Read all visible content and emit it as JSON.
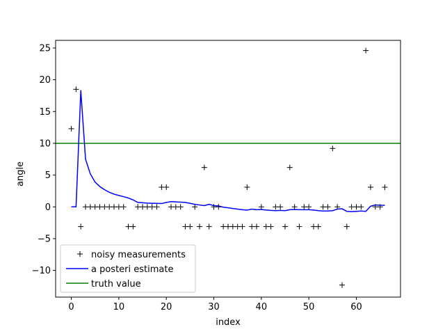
{
  "chart_data": {
    "type": "line",
    "xlabel": "index",
    "ylabel": "angle",
    "xlim": [
      -3.3,
      69.3
    ],
    "ylim": [
      -14.2,
      26.2
    ],
    "xticks": [
      0,
      10,
      20,
      30,
      40,
      50,
      60
    ],
    "yticks": [
      -10,
      -5,
      0,
      5,
      10,
      15,
      20,
      25
    ],
    "xtick_labels": [
      "0",
      "10",
      "20",
      "30",
      "40",
      "50",
      "60"
    ],
    "ytick_labels": [
      "−10",
      "−5",
      "0",
      "5",
      "10",
      "15",
      "20",
      "25"
    ],
    "grid": false,
    "legend_position": "lower-left",
    "series": [
      {
        "name": "noisy measurements",
        "kind": "scatter",
        "marker": "+",
        "color": "#000000",
        "x": [
          0,
          1,
          2,
          3,
          4,
          5,
          6,
          7,
          8,
          9,
          10,
          11,
          12,
          13,
          14,
          15,
          16,
          17,
          18,
          19,
          20,
          21,
          22,
          23,
          24,
          25,
          26,
          27,
          28,
          29,
          30,
          31,
          32,
          33,
          34,
          35,
          36,
          37,
          38,
          39,
          40,
          41,
          42,
          43,
          44,
          45,
          46,
          47,
          48,
          49,
          50,
          51,
          52,
          53,
          54,
          55,
          56,
          57,
          58,
          59,
          60,
          61,
          62,
          63,
          64,
          65,
          66
        ],
        "y": [
          12.3,
          18.5,
          -3.1,
          0,
          0,
          0,
          0,
          0,
          0,
          0,
          0,
          0,
          -3.1,
          -3.1,
          0,
          0,
          0,
          0,
          0,
          3.1,
          3.1,
          0,
          0,
          0,
          -3.1,
          -3.1,
          0,
          -3.1,
          6.2,
          -3.1,
          0,
          0,
          -3.1,
          -3.1,
          -3.1,
          -3.1,
          -3.1,
          3.1,
          -3.1,
          -3.1,
          0,
          -3.1,
          -3.1,
          0,
          0,
          -3.1,
          6.2,
          0,
          -3.1,
          0,
          0,
          -3.1,
          -3.1,
          0,
          0,
          9.2,
          0,
          -12.3,
          -3.1,
          0,
          0,
          0,
          24.6,
          3.1,
          0,
          0,
          3.1
        ]
      },
      {
        "name": "a posteri estimate",
        "kind": "line",
        "color": "#0000ff",
        "x": [
          0,
          1,
          2,
          3,
          4,
          5,
          6,
          7,
          8,
          9,
          10,
          11,
          12,
          13,
          14,
          15,
          16,
          17,
          18,
          19,
          20,
          21,
          22,
          23,
          24,
          25,
          26,
          27,
          28,
          29,
          30,
          31,
          32,
          33,
          34,
          35,
          36,
          37,
          38,
          39,
          40,
          41,
          42,
          43,
          44,
          45,
          46,
          47,
          48,
          49,
          50,
          51,
          52,
          53,
          54,
          55,
          56,
          57,
          58,
          59,
          60,
          61,
          62,
          63,
          64,
          65,
          66
        ],
        "y": [
          0,
          0,
          18.3,
          7.5,
          5.2,
          3.9,
          3.2,
          2.7,
          2.3,
          2.0,
          1.8,
          1.6,
          1.4,
          1.1,
          0.7,
          0.65,
          0.6,
          0.57,
          0.55,
          0.52,
          0.7,
          0.82,
          0.78,
          0.74,
          0.7,
          0.55,
          0.4,
          0.3,
          0.2,
          0.4,
          0.2,
          0.15,
          -0.05,
          -0.15,
          -0.25,
          -0.35,
          -0.45,
          -0.52,
          -0.35,
          -0.45,
          -0.4,
          -0.5,
          -0.55,
          -0.6,
          -0.55,
          -0.6,
          -0.45,
          -0.4,
          -0.45,
          -0.45,
          -0.45,
          -0.5,
          -0.6,
          -0.65,
          -0.65,
          -0.6,
          -0.35,
          -0.3,
          -0.7,
          -0.75,
          -0.7,
          -0.65,
          -0.7,
          0.1,
          0.3,
          0.25,
          0.25
        ]
      },
      {
        "name": "truth value",
        "kind": "hline",
        "color": "#008000",
        "y": 10
      }
    ]
  }
}
